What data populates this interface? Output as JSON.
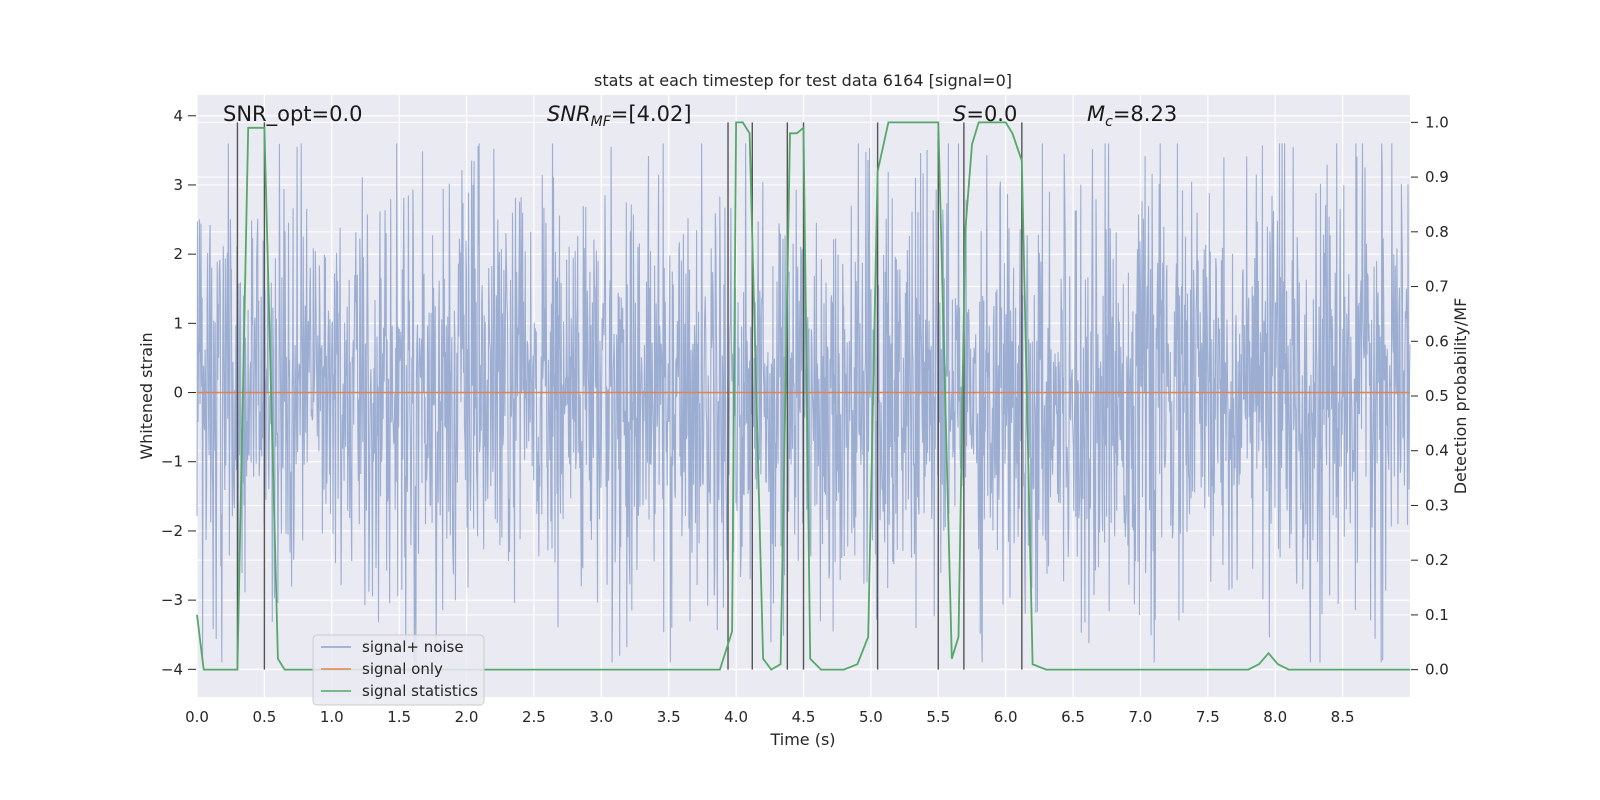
{
  "chart_data": {
    "type": "line",
    "title": "stats at each timestep for test data 6164 [signal=0]",
    "xlabel": "Time (s)",
    "ylabel": "Whitened strain",
    "y2label": "Detection probability/MF",
    "xlim": [
      0,
      9
    ],
    "ylim": [
      -4.4,
      4.3
    ],
    "y2lim": [
      -0.05,
      1.05
    ],
    "xticks": [
      "0.0",
      "0.5",
      "1.0",
      "1.5",
      "2.0",
      "2.5",
      "3.0",
      "3.5",
      "4.0",
      "4.5",
      "5.0",
      "5.5",
      "6.0",
      "6.5",
      "7.0",
      "7.5",
      "8.0",
      "8.5"
    ],
    "yticks": [
      "4",
      "3",
      "2",
      "1",
      "0",
      "−1",
      "−2",
      "−3",
      "−4"
    ],
    "y2ticks": [
      "1.0",
      "0.9",
      "0.8",
      "0.7",
      "0.6",
      "0.5",
      "0.4",
      "0.3",
      "0.2",
      "0.1",
      "0.0"
    ],
    "grid": true,
    "legend_position": "lower-left",
    "annotations": {
      "snr_opt": "SNR_opt=0.0",
      "snr_mf_name": "SNR",
      "snr_mf_sub": "MF",
      "snr_mf_value": "=[4.02]",
      "s_name": "S",
      "s_value": "=0.0",
      "mc_name": "M",
      "mc_sub": "c",
      "mc_value": "=8.23"
    },
    "series": [
      {
        "name": "signal+ noise",
        "color": "#8ea2cc",
        "noise_band": {
          "typical_abs_amplitude": 1.6,
          "max_peak": 3.6,
          "min_trough": -3.9,
          "mean": 0.0
        }
      },
      {
        "name": "signal only",
        "color": "#dd8452",
        "values_constant": 0.0
      },
      {
        "name": "signal statistics",
        "color": "#55a868",
        "axis": "right",
        "x": [
          0.0,
          0.05,
          0.1,
          0.2,
          0.3,
          0.38,
          0.5,
          0.6,
          0.65,
          1.0,
          2.0,
          3.0,
          3.5,
          3.88,
          3.97,
          4.0,
          4.05,
          4.1,
          4.2,
          4.26,
          4.33,
          4.4,
          4.45,
          4.5,
          4.55,
          4.63,
          4.7,
          4.8,
          4.9,
          4.98,
          5.05,
          5.13,
          5.2,
          5.3,
          5.5,
          5.6,
          5.65,
          5.7,
          5.75,
          5.8,
          5.9,
          6.0,
          6.05,
          6.12,
          6.2,
          6.3,
          6.5,
          7.0,
          7.5,
          7.8,
          7.88,
          7.95,
          8.02,
          8.1,
          8.5,
          9.0
        ],
        "values": [
          0.1,
          0.0,
          0.0,
          0.0,
          0.0,
          0.99,
          0.99,
          0.02,
          0.0,
          0.0,
          0.0,
          0.0,
          0.0,
          0.0,
          0.07,
          1.0,
          1.0,
          0.98,
          0.02,
          0.0,
          0.01,
          0.98,
          0.98,
          0.99,
          0.02,
          0.0,
          0.0,
          0.0,
          0.01,
          0.06,
          0.91,
          1.0,
          1.0,
          1.0,
          1.0,
          0.02,
          0.06,
          0.8,
          0.96,
          1.0,
          1.0,
          1.0,
          0.98,
          0.93,
          0.01,
          0.0,
          0.0,
          0.0,
          0.0,
          0.0,
          0.01,
          0.03,
          0.01,
          0.0,
          0.0,
          0.0
        ]
      }
    ],
    "vertical_lines_x": [
      0.3,
      0.5,
      3.94,
      4.12,
      4.38,
      4.5,
      5.05,
      5.5,
      5.69,
      6.12
    ]
  }
}
